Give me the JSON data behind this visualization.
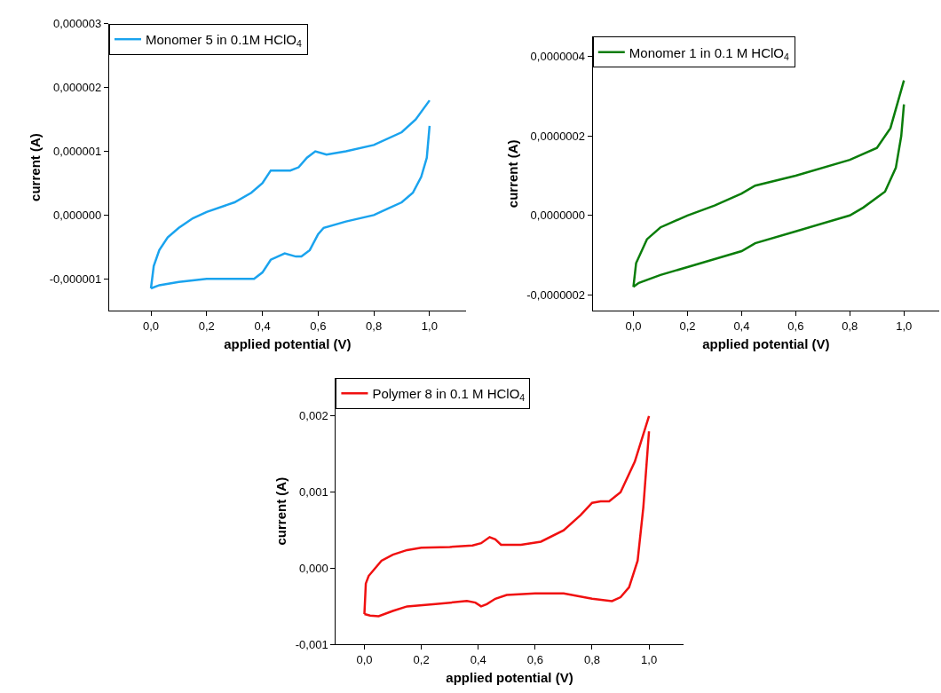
{
  "chart_data": [
    {
      "type": "line",
      "xlabel": "applied potential (V)",
      "ylabel": "current (A)",
      "legend": "top left",
      "marker": "none",
      "line_style": "solid",
      "xlim": [
        -0.15,
        1.13
      ],
      "xticks": [
        {
          "value": 0,
          "label": "0,0"
        },
        {
          "value": 0.2,
          "label": "0,2"
        },
        {
          "value": 0.4,
          "label": "0,4"
        },
        {
          "value": 0.6,
          "label": "0,6"
        },
        {
          "value": 0.8,
          "label": "0,8"
        },
        {
          "value": 1.0,
          "label": "1,0"
        }
      ],
      "ylim": [
        -1.5e-06,
        3e-06
      ],
      "yticks": [
        {
          "value": -1e-06,
          "label": "-0,000001"
        },
        {
          "value": 0,
          "label": "0,000000"
        },
        {
          "value": 1e-06,
          "label": "0,000001"
        },
        {
          "value": 2e-06,
          "label": "0,000002"
        },
        {
          "value": 3e-06,
          "label": "0,000003"
        }
      ],
      "series": [
        {
          "name": "Monomer 5 in 0.1M HClO$_{4}$",
          "color": "#1aa3ee",
          "x": [
            0,
            0.01,
            0.03,
            0.06,
            0.1,
            0.15,
            0.2,
            0.3,
            0.36,
            0.4,
            0.43,
            0.46,
            0.5,
            0.53,
            0.56,
            0.59,
            0.63,
            0.7,
            0.8,
            0.9,
            0.95,
            1.0
          ],
          "values": [
            -1.15e-06,
            -8e-07,
            -5.5e-07,
            -3.5e-07,
            -2e-07,
            -5e-08,
            5e-08,
            2e-07,
            3.5e-07,
            5e-07,
            7e-07,
            7e-07,
            7e-07,
            7.5e-07,
            9e-07,
            1e-06,
            9.5e-07,
            1e-06,
            1.1e-06,
            1.3e-06,
            1.5e-06,
            1.8e-06
          ]
        },
        {
          "color": "#1aa3ee",
          "x": [
            0,
            0.03,
            0.1,
            0.2,
            0.3,
            0.37,
            0.4,
            0.43,
            0.48,
            0.52,
            0.54,
            0.57,
            0.6,
            0.62,
            0.7,
            0.8,
            0.85,
            0.9,
            0.94,
            0.97,
            0.99,
            1.0
          ],
          "values": [
            -1.15e-06,
            -1.1e-06,
            -1.05e-06,
            -1e-06,
            -1e-06,
            -1e-06,
            -9e-07,
            -7e-07,
            -6e-07,
            -6.5e-07,
            -6.5e-07,
            -5.5e-07,
            -3e-07,
            -2e-07,
            -1e-07,
            0.0,
            1e-07,
            2e-07,
            3.5e-07,
            6e-07,
            9e-07,
            1.4e-06
          ]
        }
      ]
    },
    {
      "type": "line",
      "xlabel": "applied potential (V)",
      "ylabel": "current (A)",
      "legend": "top left",
      "marker": "none",
      "line_style": "solid",
      "xlim": [
        -0.15,
        1.13
      ],
      "xticks": [
        {
          "value": 0,
          "label": "0,0"
        },
        {
          "value": 0.2,
          "label": "0,2"
        },
        {
          "value": 0.4,
          "label": "0,4"
        },
        {
          "value": 0.6,
          "label": "0,6"
        },
        {
          "value": 0.8,
          "label": "0,8"
        },
        {
          "value": 1.0,
          "label": "1,0"
        }
      ],
      "ylim": [
        -2.4e-07,
        4.5e-07
      ],
      "yticks": [
        {
          "value": -2e-07,
          "label": "-0,0000002"
        },
        {
          "value": 0,
          "label": "0,0000000"
        },
        {
          "value": 2e-07,
          "label": "0,0000002"
        },
        {
          "value": 4e-07,
          "label": "0,0000004"
        }
      ],
      "series": [
        {
          "name": "Monomer 1 in 0.1 M HClO$_{4}$",
          "color": "#0a7d0a",
          "x": [
            0,
            0.01,
            0.05,
            0.1,
            0.2,
            0.3,
            0.4,
            0.45,
            0.6,
            0.8,
            0.9,
            0.95,
            1.0
          ],
          "values": [
            -1.8e-07,
            -1.2e-07,
            -6e-08,
            -3e-08,
            0.0,
            2.5e-08,
            5.5e-08,
            7.5e-08,
            1e-07,
            1.4e-07,
            1.7e-07,
            2.2e-07,
            3.4e-07
          ]
        },
        {
          "color": "#0a7d0a",
          "x": [
            0,
            0.02,
            0.1,
            0.2,
            0.3,
            0.4,
            0.45,
            0.6,
            0.8,
            0.85,
            0.93,
            0.97,
            0.99,
            1.0
          ],
          "values": [
            -1.8e-07,
            -1.7e-07,
            -1.5e-07,
            -1.3e-07,
            -1.1e-07,
            -9e-08,
            -7e-08,
            -4e-08,
            0.0,
            2e-08,
            6e-08,
            1.2e-07,
            2e-07,
            2.8e-07
          ]
        }
      ]
    },
    {
      "type": "line",
      "xlabel": "applied potential (V)",
      "ylabel": "current (A)",
      "legend": "top left",
      "marker": "none",
      "line_style": "solid",
      "xlim": [
        -0.1,
        1.12
      ],
      "xticks": [
        {
          "value": 0,
          "label": "0,0"
        },
        {
          "value": 0.2,
          "label": "0,2"
        },
        {
          "value": 0.4,
          "label": "0,4"
        },
        {
          "value": 0.6,
          "label": "0,6"
        },
        {
          "value": 0.8,
          "label": "0,8"
        },
        {
          "value": 1.0,
          "label": "1,0"
        }
      ],
      "ylim": [
        -0.001,
        0.0025
      ],
      "yticks": [
        {
          "value": -0.001,
          "label": "-0,001"
        },
        {
          "value": 0,
          "label": "0,000"
        },
        {
          "value": 0.001,
          "label": "0,001"
        },
        {
          "value": 0.002,
          "label": "0,002"
        }
      ],
      "series": [
        {
          "name": "Polymer 8 in 0.1 M HClO$_{4}$",
          "color": "#f01010",
          "x": [
            0,
            0.005,
            0.015,
            0.06,
            0.1,
            0.15,
            0.2,
            0.3,
            0.38,
            0.41,
            0.44,
            0.46,
            0.48,
            0.55,
            0.62,
            0.7,
            0.76,
            0.8,
            0.83,
            0.86,
            0.9,
            0.95,
            1.0
          ],
          "values": [
            -0.0006,
            -0.0002,
            -0.0001,
            0.0001,
            0.00018,
            0.00024,
            0.00027,
            0.00028,
            0.0003,
            0.00033,
            0.00041,
            0.00038,
            0.00031,
            0.00031,
            0.00035,
            0.0005,
            0.0007,
            0.00086,
            0.00088,
            0.00088,
            0.001,
            0.0014,
            0.002
          ]
        },
        {
          "color": "#f01010",
          "x": [
            0,
            0.02,
            0.05,
            0.1,
            0.15,
            0.25,
            0.36,
            0.39,
            0.41,
            0.43,
            0.46,
            0.5,
            0.6,
            0.7,
            0.8,
            0.87,
            0.9,
            0.93,
            0.96,
            0.98,
            1.0
          ],
          "values": [
            -0.0006,
            -0.00062,
            -0.00063,
            -0.00056,
            -0.0005,
            -0.00047,
            -0.00043,
            -0.00045,
            -0.0005,
            -0.00047,
            -0.0004,
            -0.00035,
            -0.00033,
            -0.00033,
            -0.0004,
            -0.00043,
            -0.00038,
            -0.00025,
            0.0001,
            0.0008,
            0.0018
          ]
        }
      ]
    }
  ]
}
